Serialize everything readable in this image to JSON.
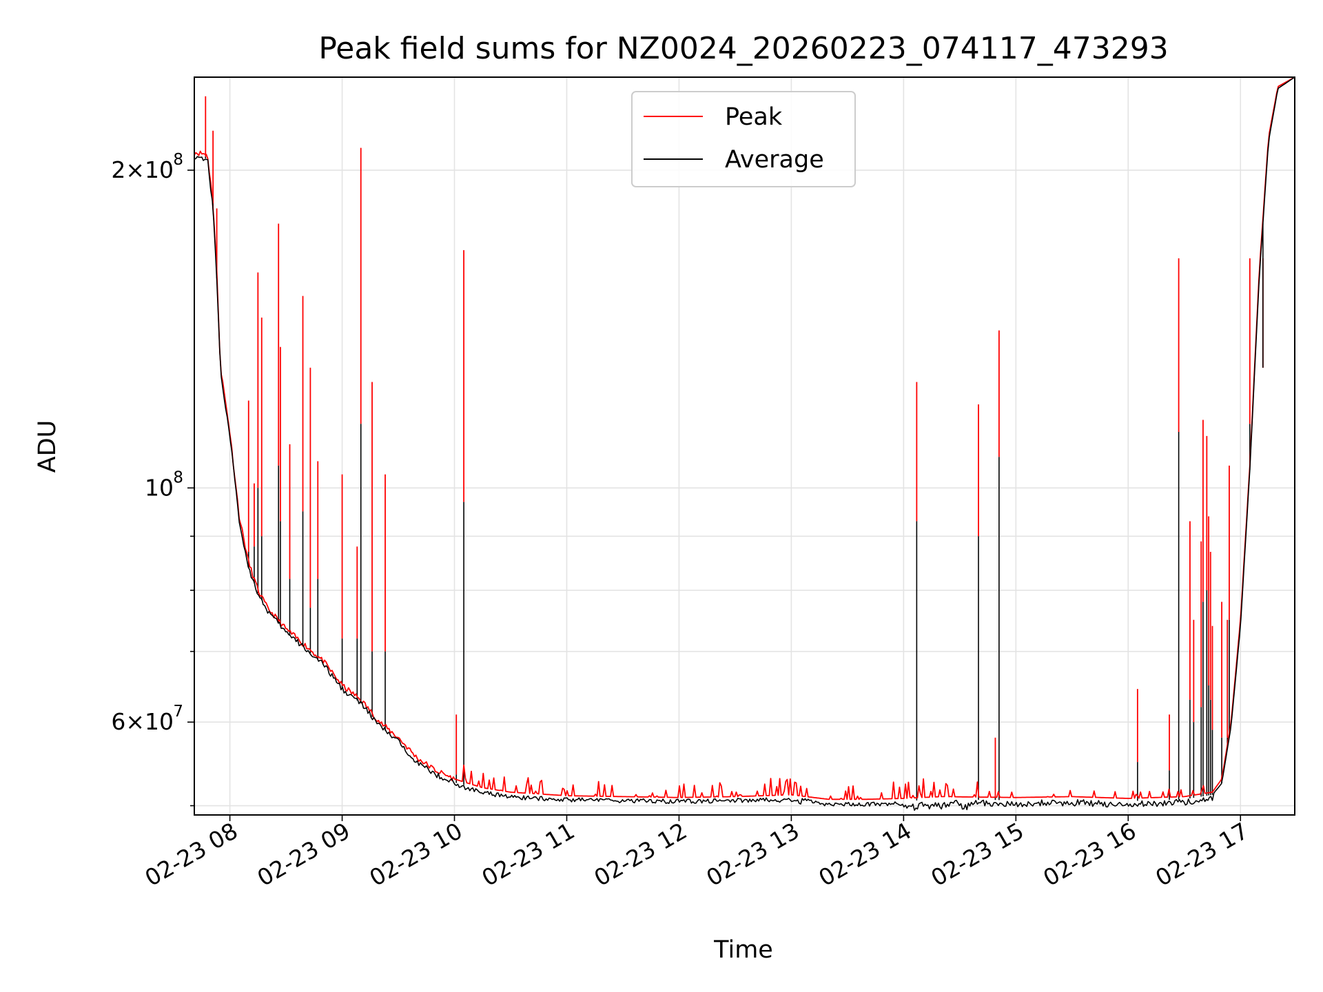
{
  "chart_data": {
    "type": "line",
    "title": "Peak field sums for NZ0024_20260223_074117_473293",
    "xlabel": "Time",
    "ylabel": "ADU",
    "y_scale": "log",
    "grid": true,
    "legend_position": "upper-center",
    "xlim": [
      "2026-02-23 07:41",
      "2026-02-23 17:29"
    ],
    "ylim": [
      49000000,
      245000000
    ],
    "x_ticks": [
      {
        "value": "2026-02-23 08:00",
        "label": "02-23 08"
      },
      {
        "value": "2026-02-23 09:00",
        "label": "02-23 09"
      },
      {
        "value": "2026-02-23 10:00",
        "label": "02-23 10"
      },
      {
        "value": "2026-02-23 11:00",
        "label": "02-23 11"
      },
      {
        "value": "2026-02-23 12:00",
        "label": "02-23 12"
      },
      {
        "value": "2026-02-23 13:00",
        "label": "02-23 13"
      },
      {
        "value": "2026-02-23 14:00",
        "label": "02-23 14"
      },
      {
        "value": "2026-02-23 15:00",
        "label": "02-23 15"
      },
      {
        "value": "2026-02-23 16:00",
        "label": "02-23 16"
      },
      {
        "value": "2026-02-23 17:00",
        "label": "02-23 17"
      }
    ],
    "y_major_ticks": [
      {
        "value": 60000000,
        "mantissa": "6",
        "exponent": "7"
      },
      {
        "value": 100000000,
        "mantissa": "",
        "exponent": "8"
      },
      {
        "value": 200000000,
        "mantissa": "2",
        "exponent": "8"
      }
    ],
    "y_minor_ticks": [
      50000000,
      70000000,
      80000000,
      90000000
    ],
    "series": [
      {
        "name": "Peak",
        "color": "#ff0000",
        "baseline": [
          [
            "2026-02-23 07:41",
            208000000
          ],
          [
            "2026-02-23 07:48",
            207000000
          ],
          [
            "2026-02-23 07:51",
            186000000
          ],
          [
            "2026-02-23 07:53",
            160000000
          ],
          [
            "2026-02-23 07:55",
            130000000
          ],
          [
            "2026-02-23 08:00",
            113000000
          ],
          [
            "2026-02-23 08:05",
            94000000
          ],
          [
            "2026-02-23 08:10",
            85000000
          ],
          [
            "2026-02-23 08:15",
            80000000
          ],
          [
            "2026-02-23 08:20",
            77000000
          ],
          [
            "2026-02-23 08:30",
            73500000
          ],
          [
            "2026-02-23 08:40",
            71000000
          ],
          [
            "2026-02-23 08:50",
            68500000
          ],
          [
            "2026-02-23 09:00",
            65000000
          ],
          [
            "2026-02-23 09:10",
            63000000
          ],
          [
            "2026-02-23 09:20",
            60000000
          ],
          [
            "2026-02-23 09:30",
            58000000
          ],
          [
            "2026-02-23 09:40",
            55500000
          ],
          [
            "2026-02-23 09:50",
            54000000
          ],
          [
            "2026-02-23 10:00",
            53000000
          ],
          [
            "2026-02-23 10:15",
            52000000
          ],
          [
            "2026-02-23 10:30",
            51500000
          ],
          [
            "2026-02-23 11:00",
            51100000
          ],
          [
            "2026-02-23 12:00",
            50900000
          ],
          [
            "2026-02-23 12:30",
            51000000
          ],
          [
            "2026-02-23 13:00",
            51200000
          ],
          [
            "2026-02-23 13:20",
            50700000
          ],
          [
            "2026-02-23 13:40",
            50700000
          ],
          [
            "2026-02-23 14:00",
            50800000
          ],
          [
            "2026-02-23 14:20",
            51000000
          ],
          [
            "2026-02-23 15:00",
            50900000
          ],
          [
            "2026-02-23 15:30",
            51000000
          ],
          [
            "2026-02-23 16:00",
            50800000
          ],
          [
            "2026-02-23 16:30",
            51000000
          ],
          [
            "2026-02-23 16:45",
            51500000
          ],
          [
            "2026-02-23 16:50",
            53000000
          ],
          [
            "2026-02-23 16:55",
            60000000
          ],
          [
            "2026-02-23 17:00",
            75000000
          ],
          [
            "2026-02-23 17:05",
            105000000
          ],
          [
            "2026-02-23 17:10",
            160000000
          ],
          [
            "2026-02-23 17:15",
            215000000
          ],
          [
            "2026-02-23 17:20",
            240000000
          ],
          [
            "2026-02-23 17:29",
            245000000
          ]
        ]
      },
      {
        "name": "Average",
        "color": "#000000",
        "baseline": [
          [
            "2026-02-23 07:41",
            206000000
          ],
          [
            "2026-02-23 07:48",
            205000000
          ],
          [
            "2026-02-23 07:51",
            184000000
          ],
          [
            "2026-02-23 07:53",
            158000000
          ],
          [
            "2026-02-23 07:55",
            129000000
          ],
          [
            "2026-02-23 08:00",
            112000000
          ],
          [
            "2026-02-23 08:05",
            93000000
          ],
          [
            "2026-02-23 08:10",
            84000000
          ],
          [
            "2026-02-23 08:15",
            79500000
          ],
          [
            "2026-02-23 08:20",
            76500000
          ],
          [
            "2026-02-23 08:30",
            73000000
          ],
          [
            "2026-02-23 08:40",
            70500000
          ],
          [
            "2026-02-23 08:50",
            68000000
          ],
          [
            "2026-02-23 09:00",
            64500000
          ],
          [
            "2026-02-23 09:10",
            62500000
          ],
          [
            "2026-02-23 09:20",
            59500000
          ],
          [
            "2026-02-23 09:30",
            57500000
          ],
          [
            "2026-02-23 09:40",
            55000000
          ],
          [
            "2026-02-23 09:50",
            53500000
          ],
          [
            "2026-02-23 10:00",
            52600000
          ],
          [
            "2026-02-23 10:15",
            51700000
          ],
          [
            "2026-02-23 10:30",
            51200000
          ],
          [
            "2026-02-23 11:00",
            50900000
          ],
          [
            "2026-02-23 12:00",
            50700000
          ],
          [
            "2026-02-23 12:30",
            50800000
          ],
          [
            "2026-02-23 13:00",
            51000000
          ],
          [
            "2026-02-23 13:20",
            50400000
          ],
          [
            "2026-02-23 13:40",
            50400000
          ],
          [
            "2026-02-23 14:00",
            50500000
          ],
          [
            "2026-02-23 14:20",
            50700000
          ],
          [
            "2026-02-23 15:00",
            50600000
          ],
          [
            "2026-02-23 15:30",
            50700000
          ],
          [
            "2026-02-23 16:00",
            50500000
          ],
          [
            "2026-02-23 16:30",
            50700000
          ],
          [
            "2026-02-23 16:45",
            51200000
          ],
          [
            "2026-02-23 16:50",
            52500000
          ],
          [
            "2026-02-23 16:55",
            59500000
          ],
          [
            "2026-02-23 17:00",
            74000000
          ],
          [
            "2026-02-23 17:05",
            104000000
          ],
          [
            "2026-02-23 17:10",
            158000000
          ],
          [
            "2026-02-23 17:15",
            213000000
          ],
          [
            "2026-02-23 17:20",
            239000000
          ],
          [
            "2026-02-23 17:29",
            245000000
          ]
        ]
      }
    ],
    "spikes": [
      {
        "time": "2026-02-23 07:47",
        "peak": 235000000,
        "average": 206000000
      },
      {
        "time": "2026-02-23 07:51",
        "peak": 218000000,
        "average": 186000000
      },
      {
        "time": "2026-02-23 07:53",
        "peak": 184000000,
        "average": 160000000
      },
      {
        "time": "2026-02-23 08:10",
        "peak": 121000000,
        "average": 87000000
      },
      {
        "time": "2026-02-23 08:13",
        "peak": 101000000,
        "average": 88000000
      },
      {
        "time": "2026-02-23 08:15",
        "peak": 160000000,
        "average": 100000000
      },
      {
        "time": "2026-02-23 08:17",
        "peak": 145000000,
        "average": 90000000
      },
      {
        "time": "2026-02-23 08:26",
        "peak": 178000000,
        "average": 105000000
      },
      {
        "time": "2026-02-23 08:27",
        "peak": 136000000,
        "average": 93000000
      },
      {
        "time": "2026-02-23 08:32",
        "peak": 110000000,
        "average": 82000000
      },
      {
        "time": "2026-02-23 08:39",
        "peak": 152000000,
        "average": 95000000
      },
      {
        "time": "2026-02-23 08:43",
        "peak": 130000000,
        "average": 77000000
      },
      {
        "time": "2026-02-23 08:47",
        "peak": 106000000,
        "average": 82000000
      },
      {
        "time": "2026-02-23 09:00",
        "peak": 103000000,
        "average": 72000000
      },
      {
        "time": "2026-02-23 09:08",
        "peak": 88000000,
        "average": 72000000
      },
      {
        "time": "2026-02-23 09:10",
        "peak": 210000000,
        "average": 115000000
      },
      {
        "time": "2026-02-23 09:16",
        "peak": 126000000,
        "average": 70000000
      },
      {
        "time": "2026-02-23 09:23",
        "peak": 103000000,
        "average": 70000000
      },
      {
        "time": "2026-02-23 10:01",
        "peak": 61000000,
        "average": 53500000
      },
      {
        "time": "2026-02-23 10:05",
        "peak": 168000000,
        "average": 97000000
      },
      {
        "time": "2026-02-23 14:07",
        "peak": 126000000,
        "average": 93000000
      },
      {
        "time": "2026-02-23 14:40",
        "peak": 120000000,
        "average": 90000000
      },
      {
        "time": "2026-02-23 14:49",
        "peak": 58000000,
        "average": 51000000
      },
      {
        "time": "2026-02-23 14:51",
        "peak": 141000000,
        "average": 107000000
      },
      {
        "time": "2026-02-23 16:05",
        "peak": 64500000,
        "average": 55000000
      },
      {
        "time": "2026-02-23 16:22",
        "peak": 61000000,
        "average": 54000000
      },
      {
        "time": "2026-02-23 16:27",
        "peak": 165000000,
        "average": 113000000
      },
      {
        "time": "2026-02-23 16:33",
        "peak": 93000000,
        "average": 63000000
      },
      {
        "time": "2026-02-23 16:35",
        "peak": 75000000,
        "average": 60000000
      },
      {
        "time": "2026-02-23 16:39",
        "peak": 89000000,
        "average": 62000000
      },
      {
        "time": "2026-02-23 16:40",
        "peak": 116000000,
        "average": 78000000
      },
      {
        "time": "2026-02-23 16:42",
        "peak": 112000000,
        "average": 80000000
      },
      {
        "time": "2026-02-23 16:43",
        "peak": 94000000,
        "average": 65000000
      },
      {
        "time": "2026-02-23 16:44",
        "peak": 87000000,
        "average": 63000000
      },
      {
        "time": "2026-02-23 16:45",
        "peak": 74000000,
        "average": 59000000
      },
      {
        "time": "2026-02-23 16:50",
        "peak": 78000000,
        "average": 58000000
      },
      {
        "time": "2026-02-23 16:53",
        "peak": 75000000,
        "average": 58000000
      },
      {
        "time": "2026-02-23 16:54",
        "peak": 105000000,
        "average": 75000000
      },
      {
        "time": "2026-02-23 17:05",
        "peak": 165000000,
        "average": 115000000
      },
      {
        "time": "2026-02-23 17:12",
        "peak": 165000000,
        "average": 130000000
      }
    ],
    "noise_bursts": [
      {
        "start": "2026-02-23 10:00",
        "end": "2026-02-23 14:40",
        "peak_amplitude": 2000000,
        "average_amplitude": 800000
      },
      {
        "start": "2026-02-23 12:45",
        "end": "2026-02-23 13:05",
        "peak_amplitude": 2500000,
        "average_amplitude": 500000
      },
      {
        "start": "2026-02-23 14:00",
        "end": "2026-02-23 16:45",
        "peak_amplitude": 900000,
        "average_amplitude": 1200000
      }
    ]
  }
}
